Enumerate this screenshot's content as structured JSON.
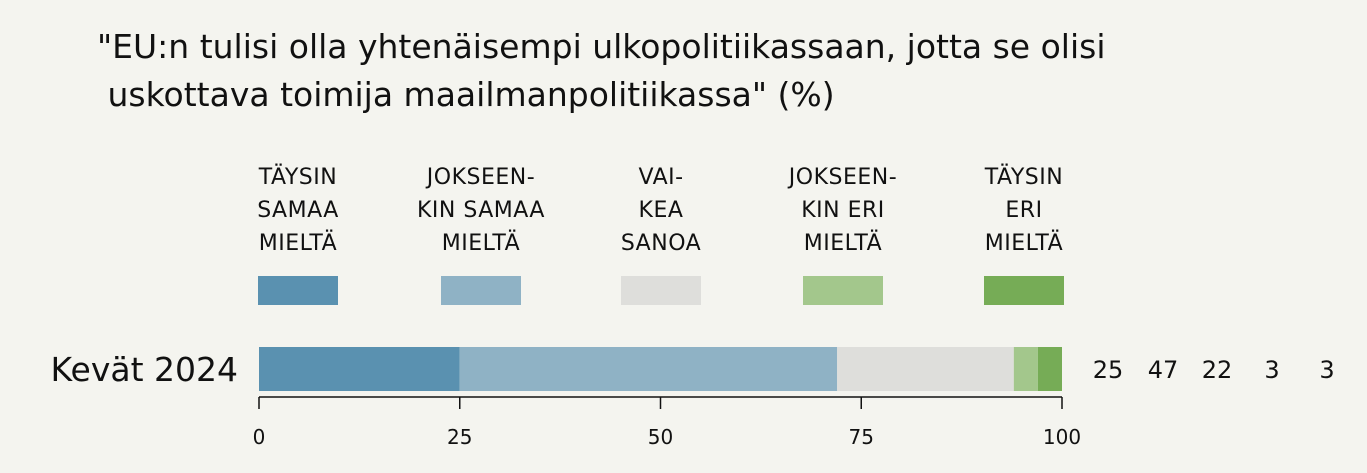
{
  "title_lines": [
    "\"EU:n tulisi olla yhtenäisempi ulkopolitiikassaan, jotta se olisi",
    " uskottava toimija maailmanpolitiikassa\" (%)"
  ],
  "chart_data": {
    "type": "bar",
    "orientation": "horizontal",
    "stacked": true,
    "title": "\"EU:n tulisi olla yhtenäisempi ulkopolitiikassaan, jotta se olisi uskottava toimija maailmanpolitiikassa\" (%)",
    "categories": [
      "Kevät 2024"
    ],
    "series": [
      {
        "name": "TÄYSIN SAMAA MIELTÄ",
        "label_lines": [
          "TÄYSIN",
          "SAMAA",
          "MIELTÄ"
        ],
        "color": "#5a91b0",
        "values": [
          25
        ]
      },
      {
        "name": "JOKSEEN-KIN SAMAA MIELTÄ",
        "label_lines": [
          "JOKSEEN-",
          "KIN SAMAA",
          "MIELTÄ"
        ],
        "color": "#8fb2c5",
        "values": [
          47
        ]
      },
      {
        "name": "VAI-KEA SANOA",
        "label_lines": [
          "VAI-",
          "KEA",
          "SANOA"
        ],
        "color": "#dededb",
        "values": [
          22
        ]
      },
      {
        "name": "JOKSEEN-KIN ERI MIELTÄ",
        "label_lines": [
          "JOKSEEN-",
          "KIN ERI",
          "MIELTÄ"
        ],
        "color": "#a3c78c",
        "values": [
          3
        ]
      },
      {
        "name": "TÄYSIN ERI MIELTÄ",
        "label_lines": [
          "TÄYSIN",
          "ERI",
          "MIELTÄ"
        ],
        "color": "#76ac56",
        "values": [
          3
        ]
      }
    ],
    "xlim": [
      0,
      100
    ],
    "xticks": [
      0,
      25,
      50,
      75,
      100
    ],
    "xtick_labels": [
      "0",
      "25",
      "50",
      "75",
      "100"
    ],
    "legend_position": "top",
    "grid": false
  }
}
